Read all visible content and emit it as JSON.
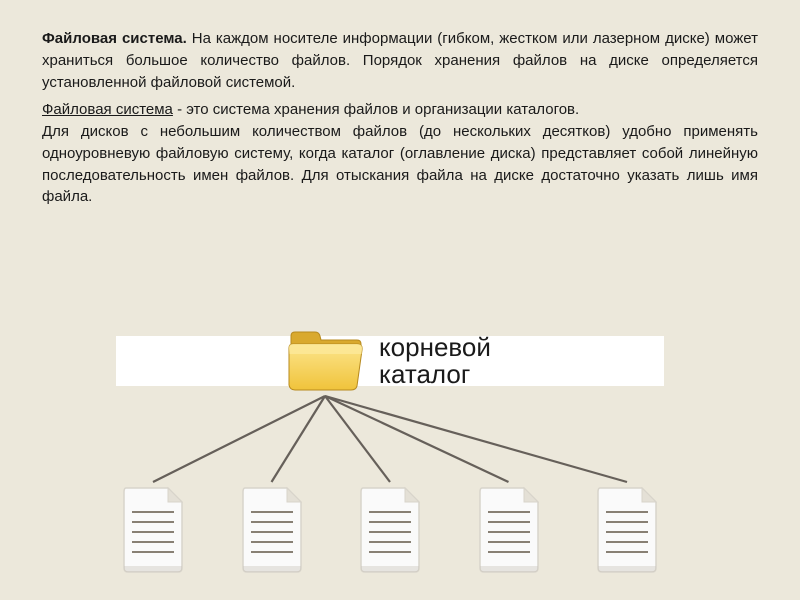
{
  "text": {
    "para1_bold": "Файловая система.",
    "para1_rest": " На каждом носителе информации (гибком, жестком или лазерном диске) может храниться большое количество файлов. Порядок хранения файлов на диске определяется установленной файловой системой.",
    "para2_ul": "Файловая система",
    "para2_seg1": " - это система хранения файлов и организации каталогов.",
    "para2_seg2": "Для дисков с небольшим количеством файлов (до нескольких десятков) удобно применять одноуровневую файловую систему, когда каталог (оглавление диска) представляет собой линейную последовательность имен файлов. Для отыскания файла на диске достаточно указать лишь имя файла."
  },
  "diagram": {
    "root_label_line1": "корневой",
    "root_label_line2": "каталог",
    "line_color": "#66605a",
    "folder": {
      "front": "#f4cf54",
      "front_light": "#fce58b",
      "tab": "#e6b93a",
      "back": "#d9a92e",
      "stroke": "#b78a1e"
    },
    "doc": {
      "paper": "#fafafa",
      "paper_edge": "#d8d4cb",
      "line": "#888074",
      "fold": "#e4e0d6",
      "shadow": "#c8c3b8"
    },
    "count": 5
  },
  "colors": {
    "page_bg": "#ece8db",
    "mask_bg": "#ffffff",
    "text": "#1a1a1a"
  }
}
